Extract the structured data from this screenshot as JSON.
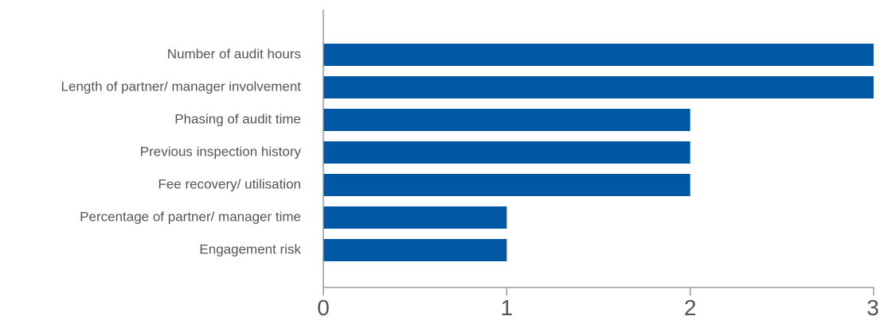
{
  "chart_data": {
    "type": "bar",
    "orientation": "horizontal",
    "categories": [
      "Number of audit hours",
      "Length of partner/ manager involvement",
      "Phasing of audit time",
      "Previous inspection history",
      "Fee recovery/ utilisation",
      "Percentage of partner/ manager time",
      "Engagement risk"
    ],
    "values": [
      3,
      3,
      2,
      2,
      2,
      1,
      1
    ],
    "xlim": [
      0,
      3
    ],
    "xticks": [
      "0",
      "1",
      "2",
      "3"
    ],
    "title": "",
    "xlabel": "",
    "ylabel": "",
    "grid": false,
    "bar_color": "#0057a4",
    "axis_color": "#8a8a8a",
    "label_color": "#555555"
  }
}
